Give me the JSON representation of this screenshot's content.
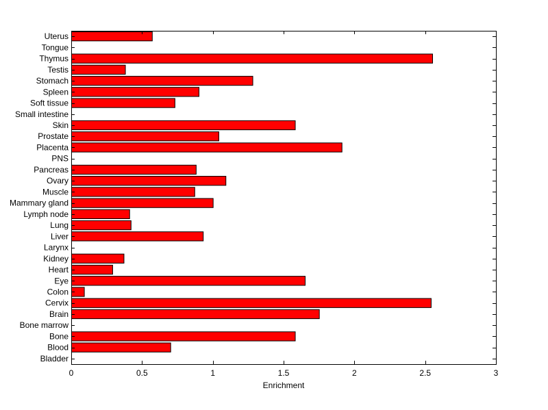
{
  "chart_data": {
    "type": "bar",
    "orientation": "horizontal",
    "title": "",
    "xlabel": "Enrichment",
    "ylabel": "",
    "xlim": [
      0,
      3
    ],
    "xticks": [
      "0",
      "0.5",
      "1",
      "1.5",
      "2",
      "2.5",
      "3"
    ],
    "grid": false,
    "legend": "none",
    "bar_color": "#ff0000",
    "bar_edge_color": "#000000",
    "categories": [
      "Bladder",
      "Blood",
      "Bone",
      "Bone marrow",
      "Brain",
      "Cervix",
      "Colon",
      "Eye",
      "Heart",
      "Kidney",
      "Larynx",
      "Liver",
      "Lung",
      "Lymph node",
      "Mammary gland",
      "Muscle",
      "Ovary",
      "Pancreas",
      "PNS",
      "Placenta",
      "Prostate",
      "Skin",
      "Small intestine",
      "Soft tissue",
      "Spleen",
      "Stomach",
      "Testis",
      "Thymus",
      "Tongue",
      "Uterus"
    ],
    "values": [
      0,
      0.7,
      1.58,
      0,
      1.75,
      2.54,
      0.09,
      1.65,
      0.29,
      0.37,
      0,
      0.93,
      0.42,
      0.41,
      1.0,
      0.87,
      1.09,
      0.88,
      0,
      1.91,
      1.04,
      1.58,
      0,
      0.73,
      0.9,
      1.28,
      0.38,
      2.55,
      0,
      0.57
    ]
  }
}
